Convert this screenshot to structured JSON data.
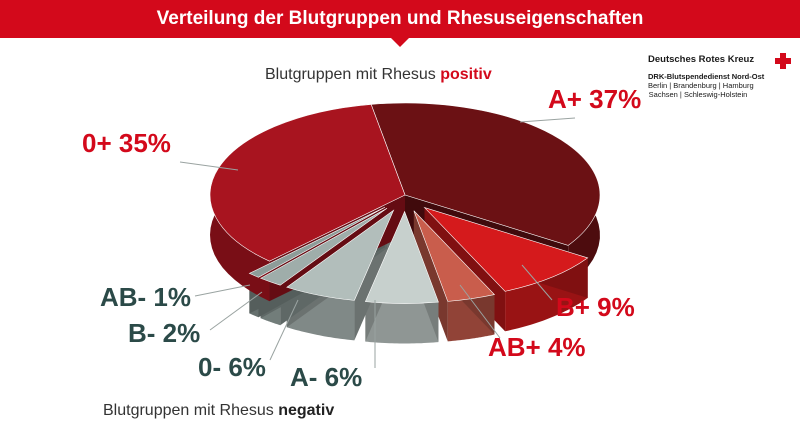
{
  "title": "Verteilung der Blutgruppen und Rhesuseigenschaften",
  "logo": {
    "organization": "Deutsches Rotes Kreuz",
    "unit": "DRK-Blutspendedienst Nord-Ost",
    "region_line1": "Berlin | Brandenburg | Hamburg",
    "region_line2": "Sachsen | Schleswig-Holstein"
  },
  "positive_caption": {
    "text": "Blutgruppen mit Rhesus ",
    "emphasis": "positiv"
  },
  "negative_caption": {
    "text": "Blutgruppen mit Rhesus ",
    "emphasis": "negativ"
  },
  "chart_data": {
    "type": "pie",
    "title": "Verteilung der Blutgruppen und Rhesuseigenschaften",
    "unit": "%",
    "slices": [
      {
        "label": "A+",
        "value": 37,
        "group": "positiv",
        "color": "#6b1114"
      },
      {
        "label": "B+",
        "value": 9,
        "group": "positiv",
        "color": "#d51a1c"
      },
      {
        "label": "AB+",
        "value": 4,
        "group": "positiv",
        "color": "#c95d4c"
      },
      {
        "label": "A-",
        "value": 6,
        "group": "negativ",
        "color": "#c7d0cd"
      },
      {
        "label": "0-",
        "value": 6,
        "group": "negativ",
        "color": "#b2bebb"
      },
      {
        "label": "B-",
        "value": 2,
        "group": "negativ",
        "color": "#9fadaa"
      },
      {
        "label": "AB-",
        "value": 1,
        "group": "negativ",
        "color": "#8d9c99"
      },
      {
        "label": "0+",
        "value": 35,
        "group": "positiv",
        "color": "#a8141f"
      }
    ],
    "label_colors": {
      "positiv": "#d3091b",
      "negativ": "#2b4a48"
    }
  }
}
